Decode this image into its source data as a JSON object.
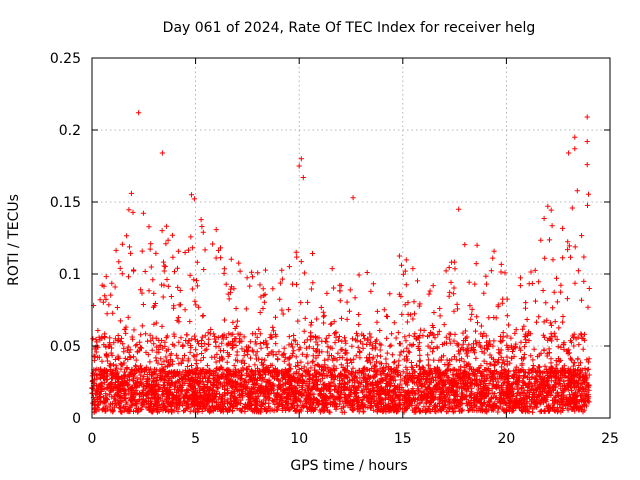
{
  "chart_data": {
    "type": "scatter",
    "title": "Day 061 of 2024, Rate Of TEC Index for receiver helg",
    "xlabel": "GPS time / hours",
    "ylabel": "ROTI / TECUs",
    "xlim": [
      0,
      25
    ],
    "ylim": [
      0,
      0.25
    ],
    "grid": true,
    "marker": "+",
    "color": "#ff0000",
    "x_ticks": [
      "0",
      "5",
      "10",
      "15",
      "20",
      "25"
    ],
    "x_tick_values": [
      0,
      5,
      10,
      15,
      20,
      25
    ],
    "y_ticks": [
      "0",
      "0.05",
      "0.1",
      "0.15",
      "0.2",
      "0.25"
    ],
    "y_tick_values": [
      0,
      0.05,
      0.1,
      0.15,
      0.2,
      0.25
    ],
    "series": [
      {
        "name": "ROTI",
        "notable_points": [
          {
            "x": 2.25,
            "y": 0.212
          },
          {
            "x": 3.4,
            "y": 0.184
          },
          {
            "x": 10.1,
            "y": 0.18
          },
          {
            "x": 10.0,
            "y": 0.175
          },
          {
            "x": 10.2,
            "y": 0.167
          },
          {
            "x": 12.6,
            "y": 0.153
          },
          {
            "x": 17.7,
            "y": 0.145
          },
          {
            "x": 23.9,
            "y": 0.209
          },
          {
            "x": 23.3,
            "y": 0.195
          },
          {
            "x": 23.3,
            "y": 0.187
          },
          {
            "x": 23.0,
            "y": 0.184
          },
          {
            "x": 23.9,
            "y": 0.192
          },
          {
            "x": 23.9,
            "y": 0.176
          },
          {
            "x": 1.9,
            "y": 0.156
          },
          {
            "x": 4.8,
            "y": 0.155
          },
          {
            "x": 22.0,
            "y": 0.147
          }
        ],
        "envelope": [
          {
            "x": 0,
            "y": 0.07
          },
          {
            "x": 1,
            "y": 0.1
          },
          {
            "x": 2,
            "y": 0.145
          },
          {
            "x": 3,
            "y": 0.13
          },
          {
            "x": 4,
            "y": 0.12
          },
          {
            "x": 5,
            "y": 0.15
          },
          {
            "x": 6,
            "y": 0.13
          },
          {
            "x": 7,
            "y": 0.1
          },
          {
            "x": 8,
            "y": 0.095
          },
          {
            "x": 9,
            "y": 0.09
          },
          {
            "x": 10,
            "y": 0.14
          },
          {
            "x": 11,
            "y": 0.085
          },
          {
            "x": 12,
            "y": 0.1
          },
          {
            "x": 13,
            "y": 0.1
          },
          {
            "x": 14,
            "y": 0.085
          },
          {
            "x": 15,
            "y": 0.11
          },
          {
            "x": 16,
            "y": 0.08
          },
          {
            "x": 17,
            "y": 0.09
          },
          {
            "x": 18,
            "y": 0.12
          },
          {
            "x": 19,
            "y": 0.12
          },
          {
            "x": 20,
            "y": 0.09
          },
          {
            "x": 21,
            "y": 0.09
          },
          {
            "x": 22,
            "y": 0.14
          },
          {
            "x": 23,
            "y": 0.14
          },
          {
            "x": 24,
            "y": 0.16
          }
        ],
        "x_range": [
          0,
          24
        ]
      }
    ]
  }
}
